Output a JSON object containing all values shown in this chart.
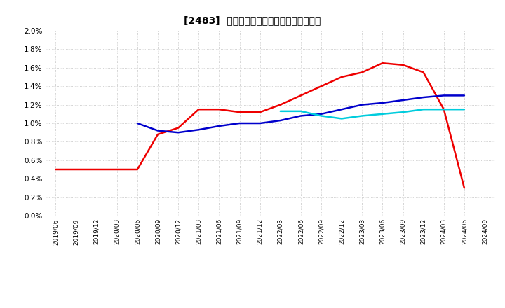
{
  "title": "[2483]  経常利益マージンの標準偏差の推移",
  "x_labels": [
    "2019/06",
    "2019/09",
    "2019/12",
    "2020/03",
    "2020/06",
    "2020/09",
    "2020/12",
    "2021/03",
    "2021/06",
    "2021/09",
    "2021/12",
    "2022/03",
    "2022/06",
    "2022/09",
    "2022/12",
    "2023/03",
    "2023/06",
    "2023/09",
    "2023/12",
    "2024/03",
    "2024/06",
    "2024/09"
  ],
  "series_3y": [
    0.005,
    0.005,
    0.005,
    0.005,
    0.005,
    0.0088,
    0.0095,
    0.0115,
    0.0115,
    0.0112,
    0.0112,
    0.012,
    0.013,
    0.014,
    0.015,
    0.0155,
    0.0165,
    0.0163,
    0.0155,
    0.0115,
    0.003,
    null
  ],
  "series_5y": [
    null,
    null,
    null,
    null,
    0.01,
    0.0092,
    0.009,
    0.0093,
    0.0097,
    0.01,
    0.01,
    0.0103,
    0.0108,
    0.011,
    0.0115,
    0.012,
    0.0122,
    0.0125,
    0.0128,
    0.013,
    0.013,
    null
  ],
  "series_7y": [
    null,
    null,
    null,
    null,
    null,
    null,
    null,
    null,
    null,
    null,
    null,
    0.0113,
    0.0113,
    0.0108,
    0.0105,
    0.0108,
    0.011,
    0.0112,
    0.0115,
    0.0115,
    0.0115,
    null
  ],
  "series_10y": [
    null,
    null,
    null,
    null,
    null,
    null,
    null,
    null,
    null,
    null,
    null,
    null,
    null,
    null,
    null,
    null,
    null,
    null,
    null,
    null,
    null,
    null
  ],
  "color_3y": "#EE0000",
  "color_5y": "#0000CC",
  "color_7y": "#00CCDD",
  "color_10y": "#006600",
  "bg_color": "#FFFFFF",
  "grid_color": "#BBBBBB",
  "ylim": [
    0.0,
    0.02
  ],
  "yticks": [
    0.0,
    0.002,
    0.004,
    0.006,
    0.008,
    0.01,
    0.012,
    0.014,
    0.016,
    0.018,
    0.02
  ]
}
